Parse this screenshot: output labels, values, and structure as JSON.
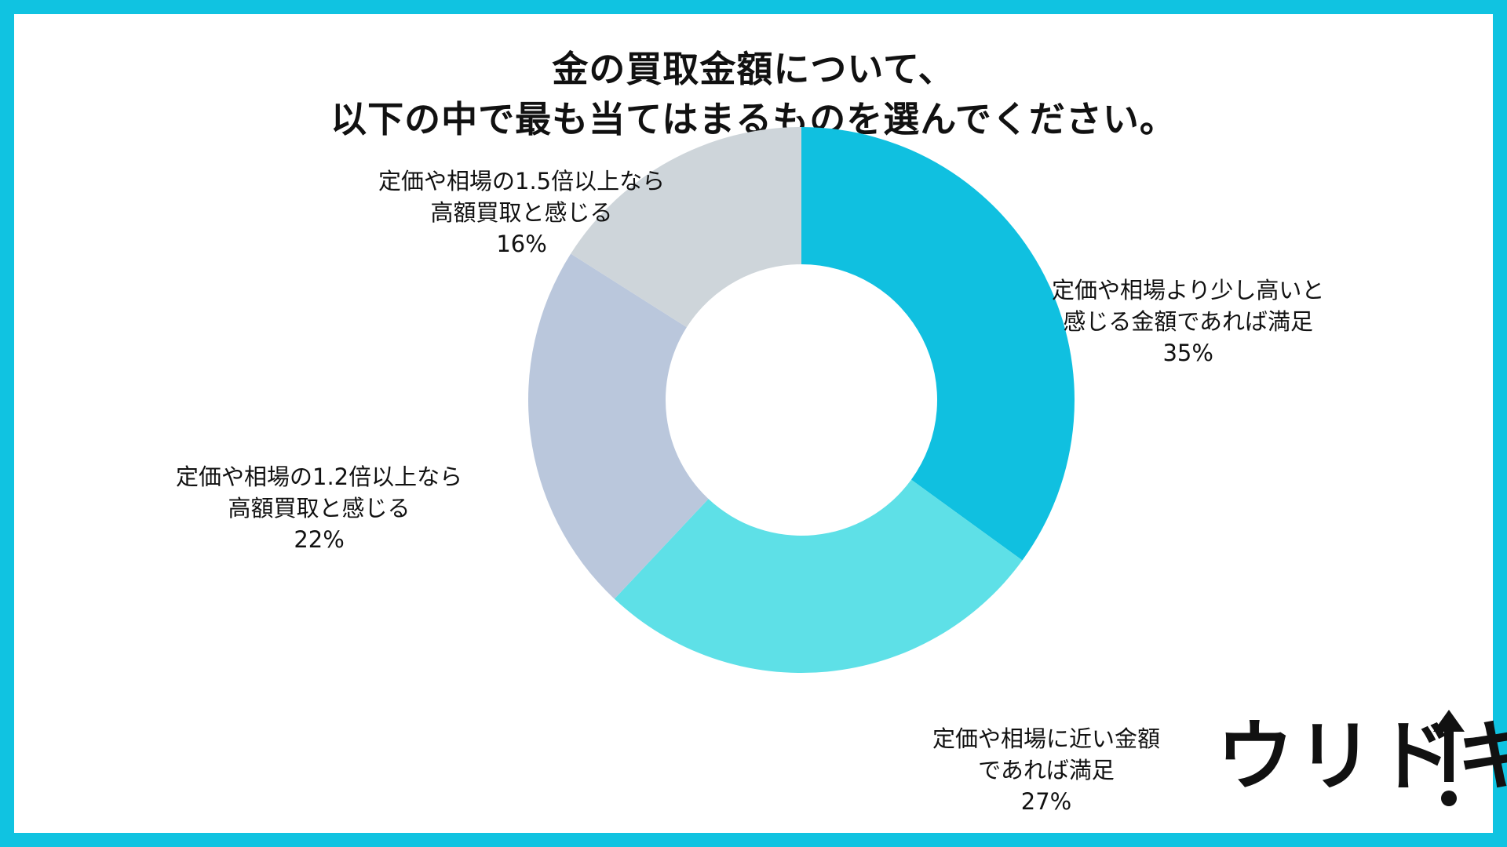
{
  "chart_data": {
    "type": "pie",
    "donut": true,
    "title_lines": [
      "金の買取金額について、",
      "以下の中で最も当てはまるものを選んでください。"
    ],
    "slices": [
      {
        "label_lines": [
          "定価や相場より少し高いと",
          "感じる金額であれば満足"
        ],
        "value": 35,
        "value_label": "35%",
        "color": "#10c0e0"
      },
      {
        "label_lines": [
          "定価や相場に近い金額",
          "であれば満足"
        ],
        "value": 27,
        "value_label": "27%",
        "color": "#5ee0e7"
      },
      {
        "label_lines": [
          "定価や相場の1.2倍以上なら",
          "高額買取と感じる"
        ],
        "value": 22,
        "value_label": "22%",
        "color": "#bac7dc"
      },
      {
        "label_lines": [
          "定価や相場の1.5倍以上なら",
          "高額買取と感じる"
        ],
        "value": 16,
        "value_label": "16%",
        "color": "#ced5da"
      }
    ]
  },
  "logo": {
    "text": "ウリドキ",
    "icon": "up-arrow-icon"
  },
  "colors": {
    "border": "#10c3e1",
    "background": "#ffffff"
  }
}
